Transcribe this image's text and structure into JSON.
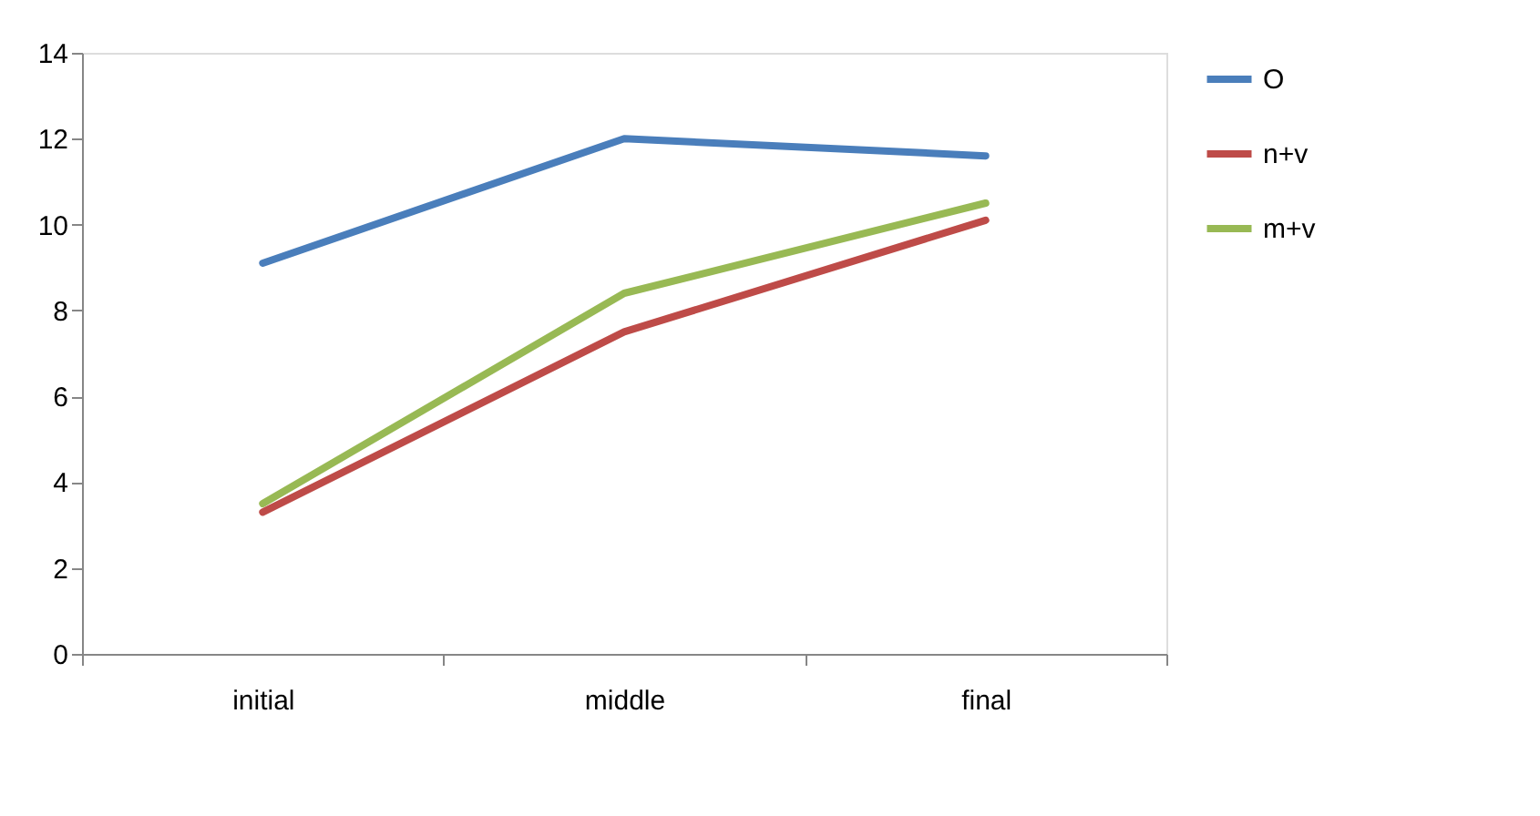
{
  "chart_data": {
    "type": "line",
    "categories": [
      "initial",
      "middle",
      "final"
    ],
    "series": [
      {
        "name": "O",
        "color": "#4a7ebb",
        "values": [
          9.1,
          12.0,
          11.6
        ]
      },
      {
        "name": "n+v",
        "color": "#be4b48",
        "values": [
          3.3,
          7.5,
          10.1
        ]
      },
      {
        "name": "m+v",
        "color": "#98b954",
        "values": [
          3.5,
          8.4,
          10.5
        ]
      }
    ],
    "ylim": [
      0,
      14
    ],
    "yticks": [
      0,
      2,
      4,
      6,
      8,
      10,
      12,
      14
    ],
    "grid": false,
    "legend": "right",
    "marker": "none",
    "line_style": "solid"
  }
}
